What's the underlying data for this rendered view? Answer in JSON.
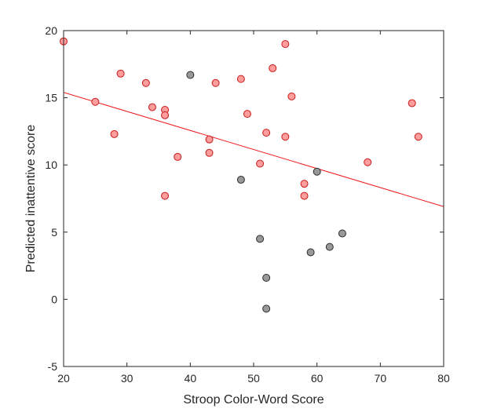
{
  "chart_data": {
    "type": "scatter",
    "title": "",
    "xlabel": "Stroop Color-Word Score",
    "ylabel": "Predicted inattentive score",
    "xlim": [
      20,
      80
    ],
    "ylim": [
      -5,
      20
    ],
    "xticks": [
      20,
      30,
      40,
      50,
      60,
      70,
      80
    ],
    "yticks": [
      -5,
      0,
      5,
      10,
      15,
      20
    ],
    "xtick_labels": [
      "20",
      "30",
      "40",
      "50",
      "60",
      "70",
      "80"
    ],
    "ytick_labels": [
      "-5",
      "0",
      "5",
      "10",
      "15",
      "20"
    ],
    "grid": false,
    "colors": {
      "red_fill": "#ff9c9c",
      "red_edge": "#c91a1a",
      "gray_fill": "#999999",
      "gray_edge": "#2b2b2b",
      "line": "#ee1c1c",
      "axis": "#262626"
    },
    "series": [
      {
        "color": "red",
        "points": [
          [
            20,
            19.2
          ],
          [
            25,
            14.7
          ],
          [
            28,
            12.3
          ],
          [
            29,
            16.8
          ],
          [
            33,
            16.1
          ],
          [
            34,
            14.3
          ],
          [
            36,
            14.1
          ],
          [
            36,
            13.7
          ],
          [
            36,
            7.7
          ],
          [
            38,
            10.6
          ],
          [
            43,
            11.9
          ],
          [
            43,
            10.9
          ],
          [
            44,
            16.1
          ],
          [
            48,
            16.4
          ],
          [
            49,
            13.8
          ],
          [
            51,
            10.1
          ],
          [
            52,
            12.4
          ],
          [
            53,
            17.2
          ],
          [
            55,
            19.0
          ],
          [
            55,
            12.1
          ],
          [
            56,
            15.1
          ],
          [
            58,
            8.6
          ],
          [
            58,
            7.7
          ],
          [
            68,
            10.2
          ],
          [
            75,
            14.6
          ],
          [
            76,
            12.1
          ]
        ]
      },
      {
        "color": "gray",
        "points": [
          [
            40,
            16.7
          ],
          [
            48,
            8.9
          ],
          [
            51,
            4.5
          ],
          [
            52,
            1.6
          ],
          [
            52,
            -0.7
          ],
          [
            59,
            3.5
          ],
          [
            60,
            9.5
          ],
          [
            62,
            3.9
          ],
          [
            64,
            4.9
          ]
        ]
      }
    ],
    "fit_line": {
      "x": [
        20,
        80
      ],
      "y": [
        15.4,
        6.9
      ]
    }
  }
}
